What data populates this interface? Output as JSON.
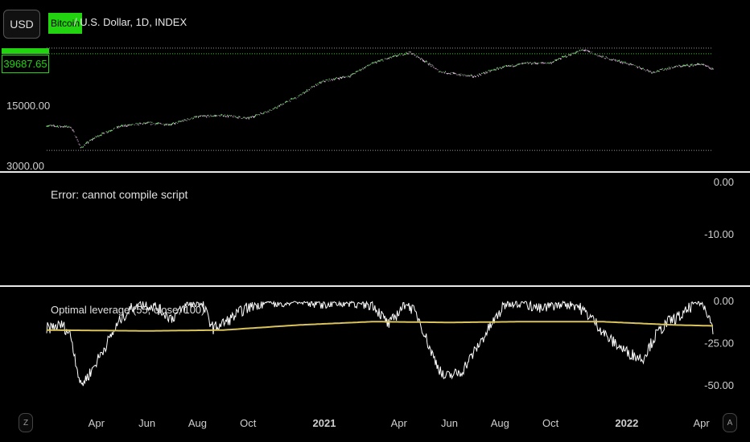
{
  "header": {
    "currency_button": "USD",
    "series_badge": "Bitcoin",
    "series_title": "/ U.S. Dollar, 1D, INDEX",
    "last_price": "39687.65"
  },
  "price_pane": {
    "y_ticks": [
      "15000.00",
      "3000.00"
    ]
  },
  "error_pane": {
    "message": "Error: cannot compile script",
    "y_ticks": [
      "0.00",
      "-10.00"
    ]
  },
  "indicator_pane": {
    "title": "Optimal leverage (55, close, 100)",
    "y_ticks": [
      "0.00",
      "-25.00",
      "-50.00"
    ]
  },
  "x_axis": {
    "labels": [
      "Apr",
      "Jun",
      "Aug",
      "Oct",
      "2021",
      "Apr",
      "Jun",
      "Aug",
      "Oct",
      "2022",
      "Apr"
    ],
    "left_button": "Z",
    "right_button": "A"
  },
  "colors": {
    "background": "#000000",
    "up_candle": "#7dd87a",
    "down_candle": "#e6b8e6",
    "ma_line": "#d9c35a",
    "leverage_line": "#ffffff",
    "accent": "#22d30f"
  },
  "chart_data": [
    {
      "type": "line",
      "title": "Bitcoin / U.S. Dollar, 1D, INDEX",
      "scale": "log",
      "y_ticks": [
        15000,
        3000
      ],
      "last_value": 39687.65,
      "x": [
        "2020-02-01",
        "2020-03-01",
        "2020-03-13",
        "2020-04-01",
        "2020-05-01",
        "2020-06-01",
        "2020-07-01",
        "2020-08-01",
        "2020-09-01",
        "2020-10-01",
        "2020-11-01",
        "2020-12-01",
        "2021-01-01",
        "2021-02-01",
        "2021-03-01",
        "2021-04-14",
        "2021-05-19",
        "2021-06-01",
        "2021-07-01",
        "2021-08-01",
        "2021-09-01",
        "2021-10-01",
        "2021-11-10",
        "2021-12-01",
        "2022-01-01",
        "2022-02-01",
        "2022-03-01",
        "2022-04-01",
        "2022-04-15"
      ],
      "y": [
        8900,
        8600,
        4900,
        6600,
        8800,
        9500,
        9200,
        11300,
        11700,
        10800,
        13800,
        19400,
        29300,
        33500,
        47000,
        63000,
        38000,
        36000,
        33000,
        41500,
        47000,
        47500,
        67500,
        56000,
        47000,
        37000,
        43000,
        46000,
        39687
      ]
    },
    {
      "type": "line",
      "title": "Optimal leverage (55, close, 100)",
      "y_ticks": [
        0,
        -25,
        -50
      ],
      "series": [
        {
          "values_x": [
            "2020-02-01",
            "2020-02-20",
            "2020-03-01",
            "2020-03-13",
            "2020-03-25",
            "2020-04-10",
            "2020-05-01",
            "2020-05-20",
            "2020-06-10",
            "2020-07-01",
            "2020-07-20",
            "2020-08-05",
            "2020-08-20",
            "2020-09-05",
            "2020-09-25",
            "2020-10-15",
            "2020-11-01",
            "2020-12-01",
            "2021-01-01",
            "2021-02-01",
            "2021-03-01",
            "2021-03-20",
            "2021-04-10",
            "2021-04-25",
            "2021-05-10",
            "2021-05-25",
            "2021-06-15",
            "2021-07-01",
            "2021-07-20",
            "2021-08-10",
            "2021-09-01",
            "2021-09-20",
            "2021-10-10",
            "2021-11-01",
            "2021-11-20",
            "2021-12-10",
            "2022-01-01",
            "2022-01-20",
            "2022-02-05",
            "2022-02-20",
            "2022-03-10",
            "2022-03-25",
            "2022-04-05",
            "2022-04-15"
          ],
          "values": [
            -16,
            -14,
            -20,
            -50,
            -42,
            -28,
            -10,
            -1,
            -3,
            -10,
            -2,
            0,
            -16,
            -12,
            -5,
            -1,
            0,
            0,
            -1,
            0,
            -2,
            -14,
            0,
            -10,
            -30,
            -45,
            -42,
            -30,
            -15,
            0,
            -1,
            -5,
            -1,
            -2,
            -10,
            -22,
            -30,
            -34,
            -20,
            -12,
            -8,
            0,
            -2,
            -16
          ]
        },
        {
          "values_x": [
            "2020-02-01",
            "2020-06-01",
            "2020-09-01",
            "2020-12-01",
            "2021-03-01",
            "2021-06-01",
            "2021-09-01",
            "2021-12-01",
            "2022-03-01",
            "2022-04-15"
          ],
          "values": [
            -17,
            -17.5,
            -17,
            -14,
            -12,
            -12.5,
            -12,
            -12,
            -14,
            -14.5
          ]
        }
      ]
    }
  ]
}
